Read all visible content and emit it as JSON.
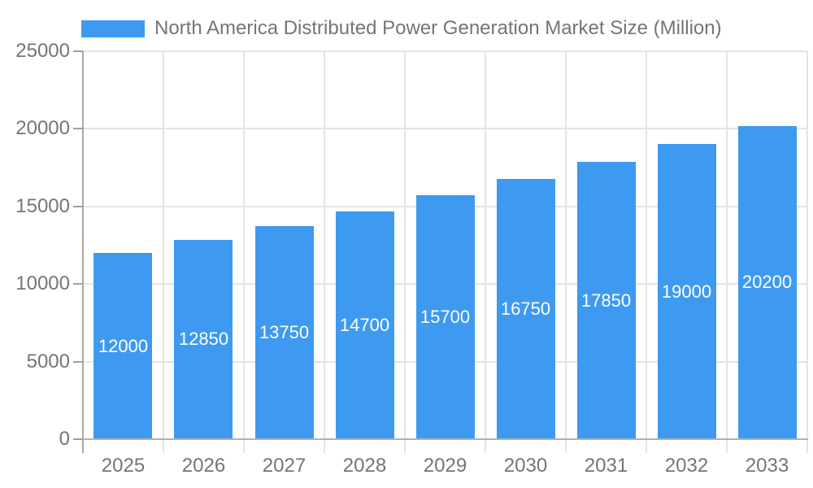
{
  "legend": {
    "label": "North America Distributed Power Generation Market Size (Million)",
    "swatch_color": "#3d9af0"
  },
  "chart_data": {
    "type": "bar",
    "title": "North America Distributed Power Generation Market Size (Million)",
    "categories": [
      "2025",
      "2026",
      "2027",
      "2028",
      "2029",
      "2030",
      "2031",
      "2032",
      "2033"
    ],
    "values": [
      12000,
      12850,
      13750,
      14700,
      15700,
      16750,
      17850,
      19000,
      20200
    ],
    "xlabel": "",
    "ylabel": "",
    "ylim": [
      0,
      25000
    ],
    "yticks": [
      0,
      5000,
      10000,
      15000,
      20000,
      25000
    ],
    "bar_labels_shown": true,
    "grid": true,
    "legend_position": "top-center",
    "colors": {
      "bar": "#3d9af0",
      "bar_value_label": "#ffffff",
      "gridline": "#e4e4e4",
      "axis_line": "#aaaaaa",
      "tick_label": "#757575",
      "background": "#ffffff"
    }
  }
}
